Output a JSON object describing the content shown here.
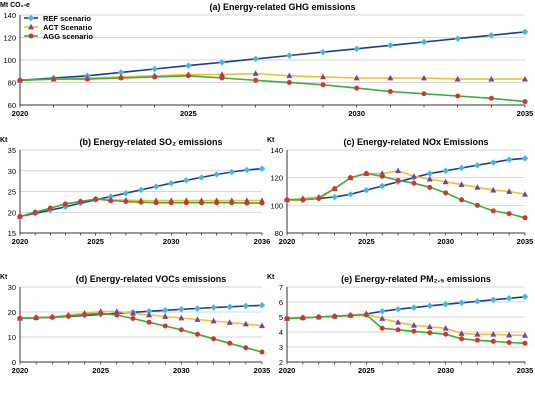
{
  "figure": {
    "legend": [
      {
        "name": "REF scenario",
        "color": "#1f3a93",
        "marker": "#3fb8e8",
        "shape": "diamond"
      },
      {
        "name": "ACT Scenario",
        "color": "#f2c029",
        "marker": "#7b3fa0",
        "shape": "triangle"
      },
      {
        "name": "AGG scenario",
        "color": "#3aae3a",
        "marker": "#d8332a",
        "shape": "circle"
      }
    ]
  },
  "chart_data": [
    {
      "type": "line",
      "title": "(a) Energy-related GHG emissions",
      "ylabel": "Mt CO₂-e",
      "xlim": [
        2020,
        2035
      ],
      "ylim": [
        60,
        140
      ],
      "xticks": [
        "2020",
        "2025",
        "2030",
        "2035"
      ],
      "yticks": [
        "60",
        "80",
        "100",
        "120",
        "140"
      ],
      "legend_position": "top-left",
      "x": [
        2020,
        2021,
        2022,
        2023,
        2024,
        2025,
        2026,
        2027,
        2028,
        2029,
        2030,
        2031,
        2032,
        2033,
        2034,
        2035
      ],
      "series": [
        {
          "name": "REF scenario",
          "values": [
            82,
            84,
            86,
            89,
            92,
            95,
            98,
            101,
            104,
            107,
            110,
            113,
            116,
            119,
            122,
            125
          ]
        },
        {
          "name": "ACT Scenario",
          "values": [
            82,
            83,
            84,
            85,
            86,
            87,
            87,
            88,
            86,
            85,
            84,
            84,
            84,
            83,
            83,
            83
          ]
        },
        {
          "name": "AGG scenario",
          "values": [
            82,
            83,
            83,
            84,
            85,
            86,
            84,
            82,
            80,
            78,
            75,
            72,
            70,
            68,
            66,
            63
          ]
        }
      ]
    },
    {
      "type": "line",
      "title": "(b) Energy-related SO₂ emissions",
      "ylabel": "Kt",
      "xlim": [
        2020,
        2036
      ],
      "ylim": [
        15,
        35
      ],
      "xticks": [
        "2020",
        "2025",
        "2030",
        "2036"
      ],
      "yticks": [
        "15",
        "20",
        "25",
        "30",
        "35"
      ],
      "x": [
        2020,
        2021,
        2022,
        2023,
        2024,
        2025,
        2026,
        2027,
        2028,
        2029,
        2030,
        2031,
        2032,
        2033,
        2034,
        2035,
        2036
      ],
      "series": [
        {
          "name": "REF scenario",
          "values": [
            19,
            19.7,
            20.5,
            21.3,
            22.2,
            23,
            23.8,
            24.6,
            25.4,
            26.2,
            27,
            27.7,
            28.4,
            29.1,
            29.7,
            30.2,
            30.5
          ]
        },
        {
          "name": "ACT Scenario",
          "values": [
            19,
            20,
            21,
            22,
            22.6,
            23.2,
            23,
            22.9,
            22.8,
            22.8,
            22.8,
            22.8,
            22.8,
            22.8,
            22.8,
            22.8,
            22.8
          ]
        },
        {
          "name": "AGG scenario",
          "values": [
            19,
            20,
            21,
            22,
            22.6,
            23.2,
            22.8,
            22.6,
            22.4,
            22.3,
            22.3,
            22.3,
            22.3,
            22.3,
            22.3,
            22.2,
            22.2
          ]
        }
      ]
    },
    {
      "type": "line",
      "title": "(c) Energy-related NOx Emissions",
      "ylabel": "Kt",
      "xlim": [
        2020,
        2035
      ],
      "ylim": [
        80,
        140
      ],
      "xticks": [
        "2020",
        "2025",
        "2030",
        "2035"
      ],
      "yticks": [
        "80",
        "100",
        "120",
        "140"
      ],
      "x": [
        2020,
        2021,
        2022,
        2023,
        2024,
        2025,
        2026,
        2027,
        2028,
        2029,
        2030,
        2031,
        2032,
        2033,
        2034,
        2035
      ],
      "series": [
        {
          "name": "REF scenario",
          "values": [
            104,
            104,
            105,
            106,
            108,
            111,
            114,
            117,
            120,
            123,
            125,
            127,
            129,
            131,
            133,
            134
          ]
        },
        {
          "name": "ACT Scenario",
          "values": [
            104,
            105,
            106,
            112,
            120,
            123,
            123,
            125,
            121,
            119,
            117,
            115,
            113,
            111,
            110,
            108
          ]
        },
        {
          "name": "AGG scenario",
          "values": [
            104,
            104,
            105,
            112,
            120,
            123,
            121,
            118,
            116,
            113,
            109,
            104,
            100,
            96,
            94,
            91
          ]
        }
      ]
    },
    {
      "type": "line",
      "title": "(d) Energy-related VOCs emissions",
      "ylabel": "Kt",
      "xlim": [
        2020,
        2035
      ],
      "ylim": [
        0,
        30
      ],
      "xticks": [
        "2020",
        "2025",
        "2030",
        "2035"
      ],
      "yticks": [
        "0",
        "10",
        "20",
        "30"
      ],
      "x": [
        2020,
        2021,
        2022,
        2023,
        2024,
        2025,
        2026,
        2027,
        2028,
        2029,
        2030,
        2031,
        2032,
        2033,
        2034,
        2035
      ],
      "series": [
        {
          "name": "REF scenario",
          "values": [
            17.5,
            17.7,
            17.9,
            18.2,
            18.6,
            19,
            19.5,
            19.9,
            20.3,
            20.7,
            21.1,
            21.4,
            21.8,
            22.1,
            22.4,
            22.7
          ]
        },
        {
          "name": "ACT Scenario",
          "values": [
            17.5,
            17.8,
            18.1,
            18.8,
            19.5,
            20.2,
            20.2,
            19.5,
            18.8,
            18.2,
            17.6,
            17,
            16.4,
            15.8,
            15.2,
            14.5
          ]
        },
        {
          "name": "AGG scenario",
          "values": [
            17.5,
            17.7,
            17.9,
            18.4,
            19,
            19.5,
            18.8,
            17.4,
            15.9,
            14.4,
            12.9,
            11.1,
            9.3,
            7.5,
            5.7,
            4
          ]
        }
      ]
    },
    {
      "type": "line",
      "title": "(e) Energy-related PM₂.₅ emissions",
      "ylabel": "Kt",
      "xlim": [
        2020,
        2035
      ],
      "ylim": [
        2,
        7
      ],
      "xticks": [
        "2020",
        "2025",
        "2030",
        "2035"
      ],
      "yticks": [
        "2",
        "3",
        "4",
        "5",
        "6",
        "7"
      ],
      "x": [
        2020,
        2021,
        2022,
        2023,
        2024,
        2025,
        2026,
        2027,
        2028,
        2029,
        2030,
        2031,
        2032,
        2033,
        2034,
        2035
      ],
      "series": [
        {
          "name": "REF scenario",
          "values": [
            4.9,
            4.95,
            5.0,
            5.05,
            5.12,
            5.2,
            5.38,
            5.52,
            5.63,
            5.75,
            5.85,
            5.95,
            6.05,
            6.15,
            6.25,
            6.35
          ]
        },
        {
          "name": "ACT Scenario",
          "values": [
            4.9,
            4.95,
            5.0,
            5.05,
            5.12,
            5.2,
            4.9,
            4.65,
            4.45,
            4.35,
            4.25,
            3.9,
            3.85,
            3.85,
            3.8,
            3.78
          ]
        },
        {
          "name": "AGG scenario",
          "values": [
            4.9,
            4.95,
            5.0,
            5.05,
            5.1,
            5.15,
            4.25,
            4.15,
            4.05,
            3.95,
            3.85,
            3.55,
            3.45,
            3.38,
            3.3,
            3.25
          ]
        }
      ]
    }
  ]
}
